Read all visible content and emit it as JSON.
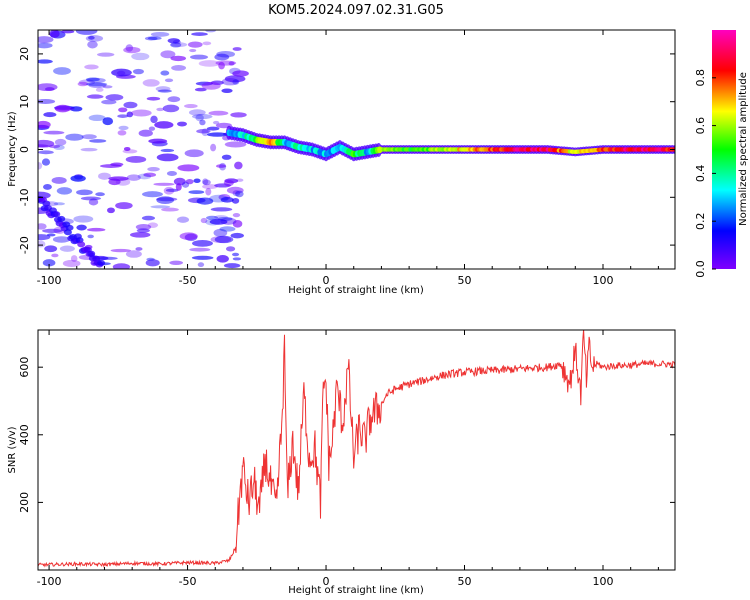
{
  "title": "KOM5.2024.097.02.31.G05",
  "chart_data": [
    {
      "type": "heatmap",
      "xlabel": "Height of straight line (km)",
      "ylabel": "Frequency (Hz)",
      "xlim": [
        -104,
        126
      ],
      "ylim": [
        -25,
        25
      ],
      "xticks": [
        -100,
        -50,
        0,
        50,
        100
      ],
      "yticks": [
        -20,
        -10,
        0,
        10,
        20
      ],
      "colorbar": {
        "label": "Normalized spectral amplitude",
        "range": [
          0.0,
          1.0
        ],
        "ticks": [
          0.0,
          0.2,
          0.4,
          0.6,
          0.8
        ],
        "colormap": "gist_rainbow_r",
        "colors": [
          "#8000ff",
          "#0000ff",
          "#00ffff",
          "#00ff00",
          "#ffff00",
          "#ff0000",
          "#ff00bf"
        ]
      },
      "ridge": [
        {
          "x": -35,
          "y": 3.5,
          "amplitude": 0.3
        },
        {
          "x": -30,
          "y": 3.0,
          "amplitude": 0.3
        },
        {
          "x": -25,
          "y": 2.0,
          "amplitude": 0.5
        },
        {
          "x": -20,
          "y": 1.5,
          "amplitude": 0.8
        },
        {
          "x": -15,
          "y": 1.5,
          "amplitude": 0.3
        },
        {
          "x": -10,
          "y": 0.5,
          "amplitude": 0.4
        },
        {
          "x": -5,
          "y": 0.0,
          "amplitude": 0.3
        },
        {
          "x": 0,
          "y": -1.0,
          "amplitude": 0.3
        },
        {
          "x": 5,
          "y": 0.5,
          "amplitude": 0.3
        },
        {
          "x": 10,
          "y": -1.0,
          "amplitude": 0.5
        },
        {
          "x": 15,
          "y": -0.5,
          "amplitude": 0.3
        },
        {
          "x": 20,
          "y": 0.0,
          "amplitude": 0.6
        },
        {
          "x": 30,
          "y": 0.0,
          "amplitude": 0.5
        },
        {
          "x": 40,
          "y": 0.0,
          "amplitude": 0.6
        },
        {
          "x": 50,
          "y": 0.0,
          "amplitude": 0.7
        },
        {
          "x": 60,
          "y": 0.0,
          "amplitude": 0.8
        },
        {
          "x": 70,
          "y": 0.0,
          "amplitude": 0.9
        },
        {
          "x": 80,
          "y": 0.0,
          "amplitude": 0.9
        },
        {
          "x": 90,
          "y": -0.5,
          "amplitude": 0.6
        },
        {
          "x": 100,
          "y": 0.0,
          "amplitude": 0.8
        },
        {
          "x": 110,
          "y": 0.0,
          "amplitude": 0.9
        },
        {
          "x": 120,
          "y": 0.0,
          "amplitude": 0.9
        },
        {
          "x": 126,
          "y": 0.0,
          "amplitude": 0.8
        }
      ]
    },
    {
      "type": "line",
      "xlabel": "Height of straight line (km)",
      "ylabel": "SNR (v/v)",
      "xlim": [
        -104,
        126
      ],
      "ylim": [
        0,
        710
      ],
      "xticks": [
        -100,
        -50,
        0,
        50,
        100
      ],
      "yticks": [
        200,
        400,
        600
      ],
      "color": "#ee3333",
      "x": [
        -104,
        -90,
        -80,
        -70,
        -60,
        -50,
        -40,
        -35,
        -33,
        -32,
        -31,
        -30,
        -28,
        -26,
        -24,
        -22,
        -20,
        -18,
        -16,
        -15,
        -14,
        -12,
        -10,
        -8,
        -6,
        -4,
        -2,
        -1,
        0,
        1,
        2,
        4,
        6,
        8,
        10,
        12,
        14,
        16,
        18,
        20,
        22,
        25,
        30,
        35,
        40,
        45,
        50,
        55,
        60,
        65,
        70,
        75,
        80,
        85,
        88,
        90,
        92,
        93,
        94,
        95,
        96,
        98,
        100,
        105,
        110,
        115,
        120,
        126
      ],
      "y": [
        15,
        18,
        16,
        20,
        18,
        22,
        20,
        28,
        60,
        130,
        230,
        300,
        200,
        260,
        170,
        330,
        250,
        180,
        420,
        650,
        220,
        380,
        230,
        520,
        330,
        360,
        200,
        540,
        560,
        320,
        360,
        540,
        430,
        600,
        330,
        420,
        380,
        450,
        470,
        490,
        520,
        535,
        550,
        560,
        572,
        580,
        585,
        588,
        590,
        592,
        595,
        598,
        600,
        610,
        550,
        650,
        520,
        700,
        560,
        660,
        600,
        610,
        600,
        605,
        606,
        610,
        610,
        608
      ]
    }
  ]
}
